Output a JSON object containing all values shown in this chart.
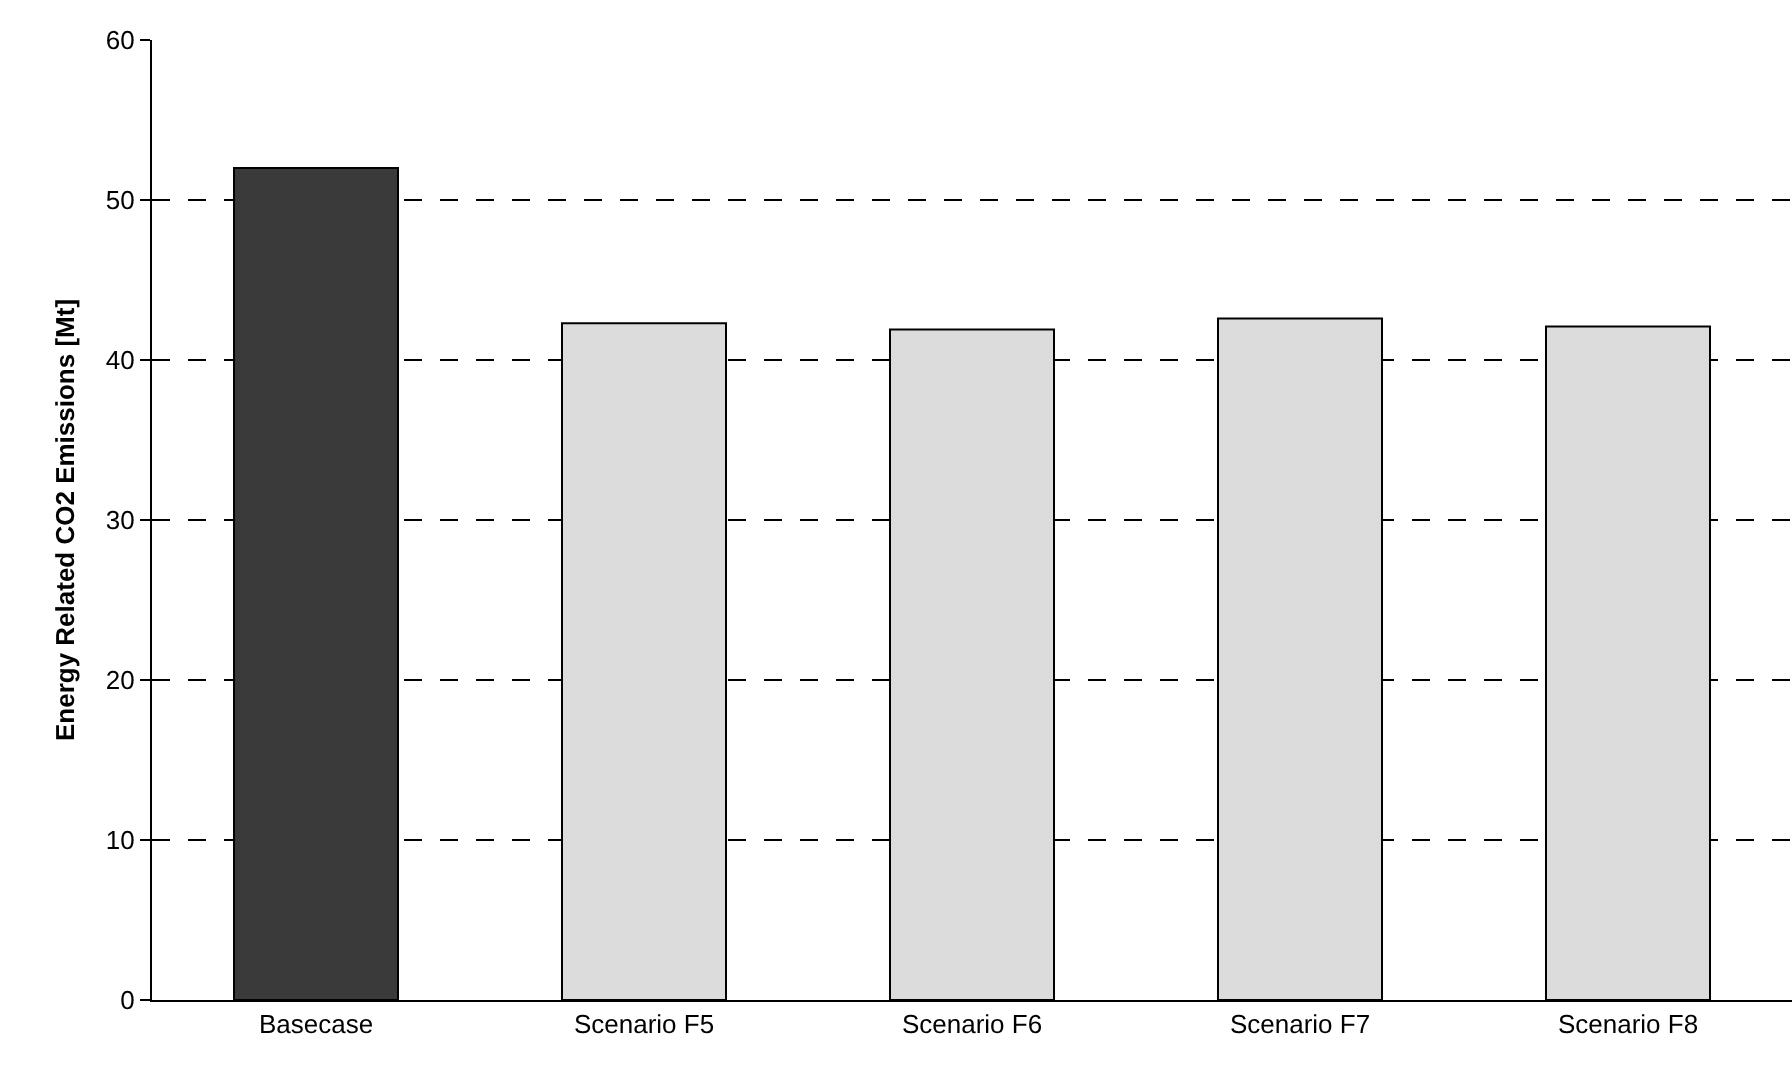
{
  "chart_data": {
    "type": "bar",
    "ylabel": "Energy Related CO2 Emissions [Mt]",
    "categories": [
      "Basecase",
      "Scenario F5",
      "Scenario F6",
      "Scenario F7",
      "Scenario F8"
    ],
    "values": [
      52.0,
      42.3,
      41.9,
      42.6,
      42.1
    ],
    "colors": [
      "#3a3a3a",
      "#dcdcdc",
      "#dcdcdc",
      "#dcdcdc",
      "#dcdcdc"
    ],
    "ylim": [
      0,
      60
    ],
    "yticks": [
      0,
      10,
      20,
      30,
      40,
      50,
      60
    ],
    "grid": "y"
  }
}
